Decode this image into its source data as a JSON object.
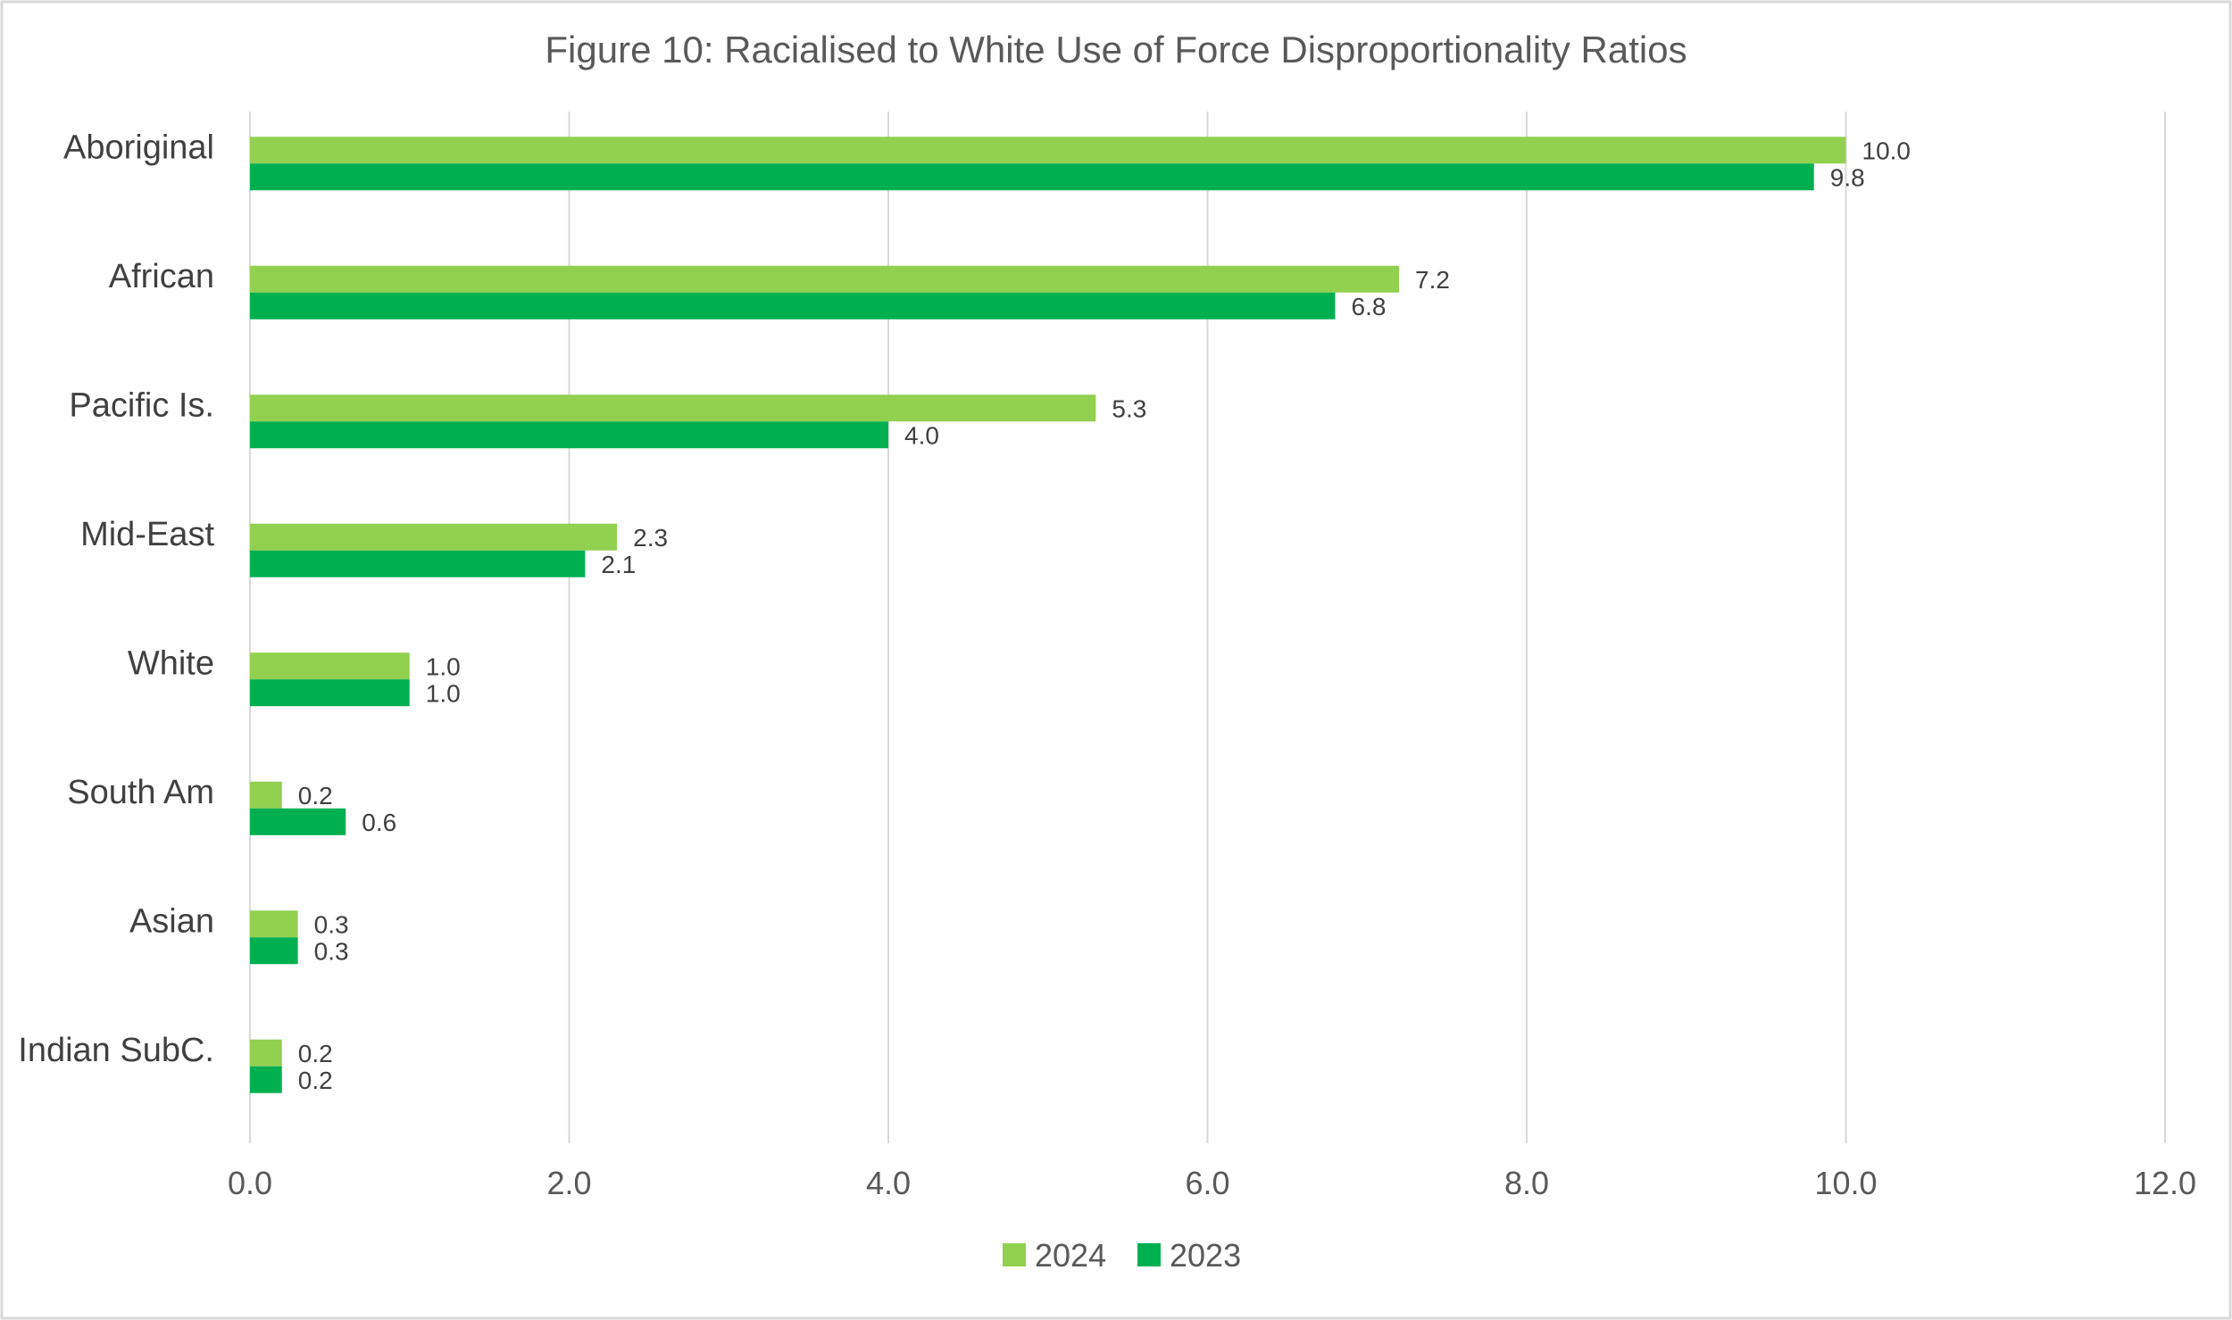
{
  "chart_data": {
    "type": "bar",
    "orientation": "horizontal",
    "title": "Figure 10: Racialised to White Use of Force Disproportionality Ratios",
    "categories": [
      "Aboriginal",
      "African",
      "Pacific Is.",
      "Mid-East",
      "White",
      "South Am",
      "Asian",
      "Indian SubC."
    ],
    "series": [
      {
        "name": "2024",
        "color": "#92D050",
        "values": [
          10.0,
          7.2,
          5.3,
          2.3,
          1.0,
          0.2,
          0.3,
          0.2
        ],
        "labels": [
          "10.0",
          "7.2",
          "5.3",
          "2.3",
          "1.0",
          "0.2",
          "0.3",
          "0.2"
        ]
      },
      {
        "name": "2023",
        "color": "#00B050",
        "values": [
          9.8,
          6.8,
          4.0,
          2.1,
          1.0,
          0.6,
          0.3,
          0.2
        ],
        "labels": [
          "9.8",
          "6.8",
          "4.0",
          "2.1",
          "1.0",
          "0.6",
          "0.3",
          "0.2"
        ]
      }
    ],
    "xlim": [
      0,
      12
    ],
    "x_ticks": [
      0,
      2,
      4,
      6,
      8,
      10,
      12
    ],
    "x_tick_labels": [
      "0.0",
      "2.0",
      "4.0",
      "6.0",
      "8.0",
      "10.0",
      "12.0"
    ],
    "xlabel": "",
    "ylabel": "",
    "grid": true,
    "legend_position": "bottom"
  }
}
